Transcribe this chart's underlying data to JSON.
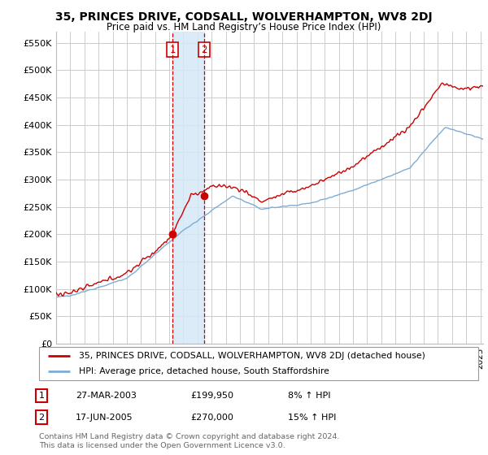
{
  "title": "35, PRINCES DRIVE, CODSALL, WOLVERHAMPTON, WV8 2DJ",
  "subtitle": "Price paid vs. HM Land Registry’s House Price Index (HPI)",
  "ylabel_ticks": [
    "£0",
    "£50K",
    "£100K",
    "£150K",
    "£200K",
    "£250K",
    "£300K",
    "£350K",
    "£400K",
    "£450K",
    "£500K",
    "£550K"
  ],
  "ytick_vals": [
    0,
    50000,
    100000,
    150000,
    200000,
    250000,
    300000,
    350000,
    400000,
    450000,
    500000,
    550000
  ],
  "ylim": [
    0,
    570000
  ],
  "xlim_start": 1995.0,
  "xlim_end": 2025.2,
  "purchase1_x": 2003.23,
  "purchase1_y": 199950,
  "purchase2_x": 2005.46,
  "purchase2_y": 270000,
  "legend_entries": [
    "35, PRINCES DRIVE, CODSALL, WOLVERHAMPTON, WV8 2DJ (detached house)",
    "HPI: Average price, detached house, South Staffordshire"
  ],
  "table_rows": [
    {
      "num": "1",
      "date": "27-MAR-2003",
      "price": "£199,950",
      "hpi": "8% ↑ HPI"
    },
    {
      "num": "2",
      "date": "17-JUN-2005",
      "price": "£270,000",
      "hpi": "15% ↑ HPI"
    }
  ],
  "footer": "Contains HM Land Registry data © Crown copyright and database right 2024.\nThis data is licensed under the Open Government Licence v3.0.",
  "red_color": "#cc0000",
  "blue_color": "#7dadd4",
  "bg_color": "#ffffff",
  "grid_color": "#cccccc",
  "highlight_fill": "#d6e8f7",
  "title_fontsize": 10,
  "subtitle_fontsize": 8.5
}
